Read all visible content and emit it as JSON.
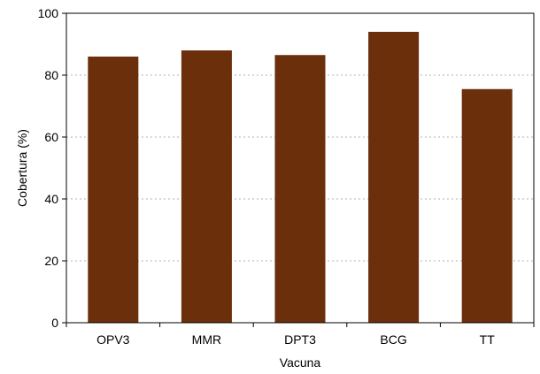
{
  "chart_data": {
    "type": "bar",
    "categories": [
      "OPV3",
      "MMR",
      "DPT3",
      "BCG",
      "TT"
    ],
    "values": [
      86,
      88,
      86.5,
      94,
      75.5
    ],
    "xlabel": "Vacuna",
    "ylabel": "Cobertura (%)",
    "ylim": [
      0,
      100
    ],
    "yticks": [
      "0",
      "20",
      "40",
      "60",
      "80",
      "100"
    ],
    "grid": "horizontal dotted",
    "colors": {
      "bar": "#6b2f0c",
      "grid": "#b0b0b0",
      "axis": "#000000"
    }
  }
}
